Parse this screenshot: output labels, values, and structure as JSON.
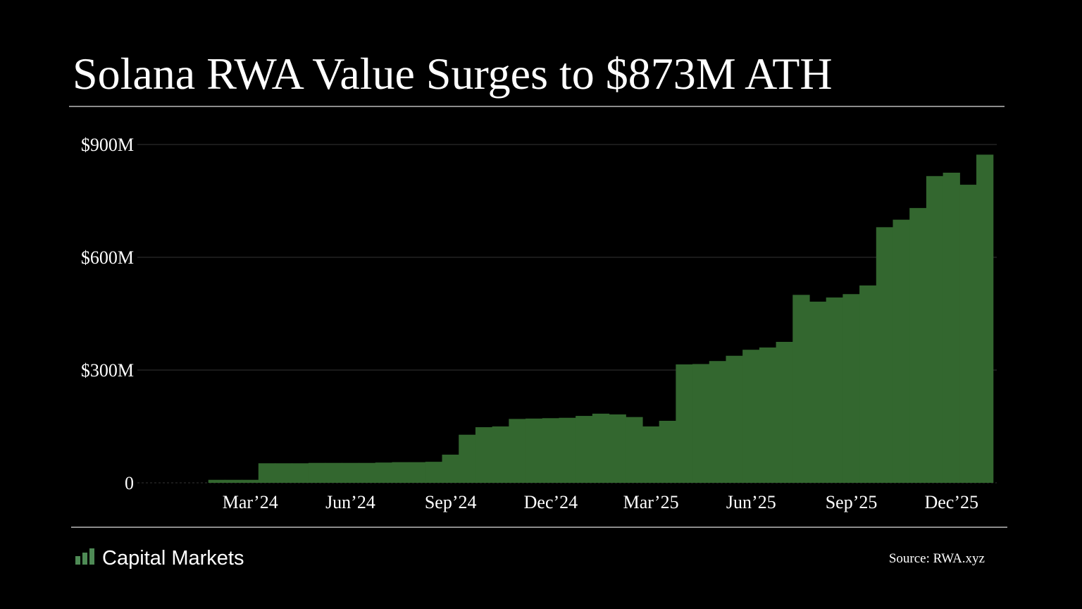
{
  "brand": "Capital Markets",
  "chart_data": {
    "type": "bar",
    "title": "Solana RWA Value Surges to $873M ATH",
    "source": "Source: RWA.xyz",
    "categories": [
      null,
      null,
      "Mar’24",
      null,
      null,
      null,
      null,
      null,
      "Jun’24",
      null,
      null,
      null,
      null,
      null,
      "Sep’24",
      null,
      null,
      null,
      null,
      null,
      "Dec’24",
      null,
      null,
      null,
      null,
      null,
      "Mar’25",
      null,
      null,
      null,
      null,
      null,
      "Jun’25",
      null,
      null,
      null,
      null,
      null,
      "Sep’25",
      null,
      null,
      null,
      null,
      null,
      "Dec’25",
      null,
      null
    ],
    "values": [
      8,
      8,
      8,
      52,
      52,
      52,
      53,
      53,
      53,
      53,
      54,
      55,
      55,
      56,
      75,
      128,
      148,
      150,
      170,
      171,
      172,
      173,
      178,
      184,
      182,
      175,
      150,
      165,
      315,
      316,
      324,
      338,
      354,
      360,
      375,
      500,
      482,
      493,
      502,
      525,
      680,
      700,
      731,
      816,
      825,
      793,
      873
    ],
    "color": "#33672f",
    "ylim": [
      0,
      900
    ],
    "yticks": [
      0,
      {
        "value": 300,
        "label": "$300M"
      },
      {
        "value": 600,
        "label": "$600M"
      },
      {
        "value": 900,
        "label": "$900M"
      }
    ],
    "grid": true
  }
}
